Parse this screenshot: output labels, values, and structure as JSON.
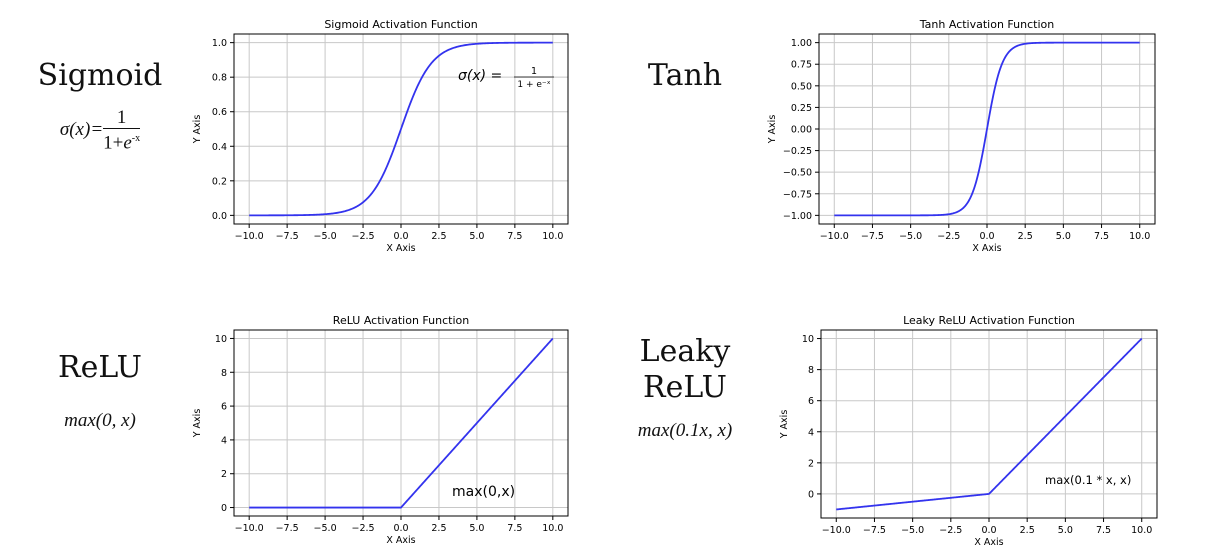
{
  "labels": {
    "sigmoid": {
      "name": "Sigmoid",
      "formula_lhs": "σ(x)=",
      "formula_num": "1",
      "formula_den_base": "1+",
      "formula_den_e": "e",
      "formula_den_exp": "-x"
    },
    "tanh": {
      "name": "Tanh"
    },
    "relu": {
      "name": "ReLU",
      "formula": "max(0, x)"
    },
    "leaky": {
      "name_line1": "Leaky",
      "name_line2": "ReLU",
      "formula": "max(0.1x, x)"
    }
  },
  "colors": {
    "curve": "#3333ee",
    "grid": "#c8c8c8",
    "axis": "#000000"
  },
  "chart_data": [
    {
      "type": "line",
      "title": "Sigmoid Activation Function",
      "xlabel": "X Axis",
      "ylabel": "Y Axis",
      "xlim": [
        -11,
        11
      ],
      "ylim": [
        -0.05,
        1.05
      ],
      "xticks": [
        -10,
        -7.5,
        -5,
        -2.5,
        0,
        2.5,
        5,
        7.5,
        10
      ],
      "xtick_labels": [
        "−10.0",
        "−7.5",
        "−5.0",
        "−2.5",
        "0.0",
        "2.5",
        "5.0",
        "7.5",
        "10.0"
      ],
      "yticks": [
        0,
        0.2,
        0.4,
        0.6,
        0.8,
        1.0
      ],
      "ytick_labels": [
        "0.0",
        "0.2",
        "0.4",
        "0.6",
        "0.8",
        "1.0"
      ],
      "grid": true,
      "function": "sigmoid",
      "x_range": [
        -10,
        10
      ],
      "annotation": "σ(x) = 1 / (1 + e^−x)"
    },
    {
      "type": "line",
      "title": "Tanh Activation Function",
      "xlabel": "X Axis",
      "ylabel": "Y Axis",
      "xlim": [
        -11,
        11
      ],
      "ylim": [
        -1.1,
        1.1
      ],
      "xticks": [
        -10,
        -7.5,
        -5,
        -2.5,
        0,
        2.5,
        5,
        7.5,
        10
      ],
      "xtick_labels": [
        "−10.0",
        "−7.5",
        "−5.0",
        "−2.5",
        "0.0",
        "2.5",
        "5.0",
        "7.5",
        "10.0"
      ],
      "yticks": [
        -1,
        -0.75,
        -0.5,
        -0.25,
        0,
        0.25,
        0.5,
        0.75,
        1
      ],
      "ytick_labels": [
        "−1.00",
        "−0.75",
        "−0.50",
        "−0.25",
        "0.00",
        "0.25",
        "0.50",
        "0.75",
        "1.00"
      ],
      "grid": true,
      "function": "tanh",
      "x_range": [
        -10,
        10
      ]
    },
    {
      "type": "line",
      "title": "ReLU Activation Function",
      "xlabel": "X Axis",
      "ylabel": "Y Axis",
      "xlim": [
        -11,
        11
      ],
      "ylim": [
        -0.5,
        10.5
      ],
      "xticks": [
        -10,
        -7.5,
        -5,
        -2.5,
        0,
        2.5,
        5,
        7.5,
        10
      ],
      "xtick_labels": [
        "−10.0",
        "−7.5",
        "−5.0",
        "−2.5",
        "0.0",
        "2.5",
        "5.0",
        "7.5",
        "10.0"
      ],
      "yticks": [
        0,
        2,
        4,
        6,
        8,
        10
      ],
      "ytick_labels": [
        "0",
        "2",
        "4",
        "6",
        "8",
        "10"
      ],
      "grid": true,
      "function": "relu",
      "x_range": [
        -10,
        10
      ],
      "annotation": "max(0,x)"
    },
    {
      "type": "line",
      "title": "Leaky ReLU Activation Function",
      "xlabel": "X Axis",
      "ylabel": "Y Axis",
      "xlim": [
        -11,
        11
      ],
      "ylim": [
        -1.55,
        10.55
      ],
      "xticks": [
        -10,
        -7.5,
        -5,
        -2.5,
        0,
        2.5,
        5,
        7.5,
        10
      ],
      "xtick_labels": [
        "−10.0",
        "−7.5",
        "−5.0",
        "−2.5",
        "0.0",
        "2.5",
        "5.0",
        "7.5",
        "10.0"
      ],
      "yticks": [
        0,
        2,
        4,
        6,
        8,
        10
      ],
      "ytick_labels": [
        "0",
        "2",
        "4",
        "6",
        "8",
        "10"
      ],
      "grid": true,
      "function": "leaky_relu",
      "x_range": [
        -10,
        10
      ],
      "annotation": "max(0.1 * x, x)"
    }
  ]
}
